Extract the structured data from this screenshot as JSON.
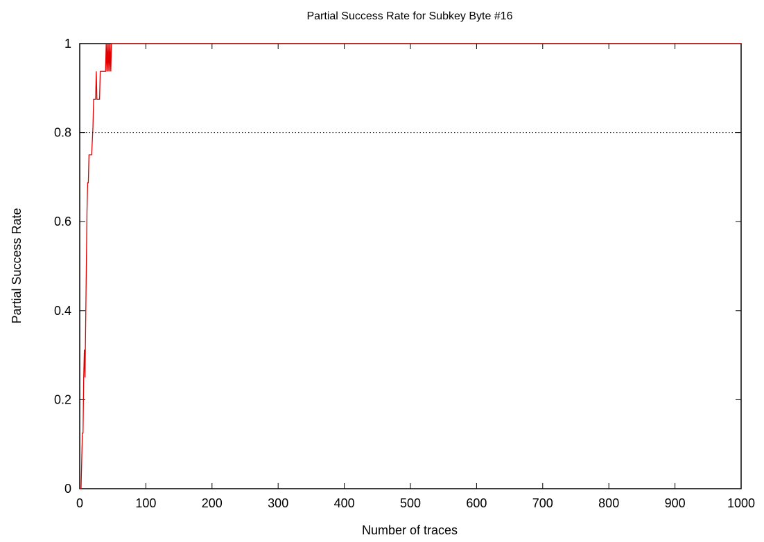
{
  "chart_data": {
    "type": "line",
    "title": "Partial Success Rate for Subkey Byte #16",
    "xlabel": "Number of traces",
    "ylabel": "Partial Success Rate",
    "xlim": [
      0,
      1000
    ],
    "ylim": [
      0,
      1
    ],
    "x_ticks": [
      "0",
      "100",
      "200",
      "300",
      "400",
      "500",
      "600",
      "700",
      "800",
      "900",
      "1000"
    ],
    "y_ticks": [
      "0",
      "0.2",
      "0.4",
      "0.6",
      "0.8",
      "1"
    ],
    "grid": false,
    "legend": "none",
    "series": [
      {
        "color": "#e00000",
        "x": [
          0,
          2,
          3,
          4,
          5,
          6,
          7,
          8,
          9,
          10,
          11,
          12,
          13,
          14,
          15,
          16,
          18,
          20,
          21,
          22,
          24,
          25,
          26,
          28,
          30,
          31,
          32,
          34,
          35,
          36,
          38,
          39,
          40,
          41,
          42,
          43,
          44,
          45,
          46,
          47,
          48,
          50,
          60,
          100,
          200,
          300,
          400,
          500,
          600,
          700,
          800,
          900,
          1000
        ],
        "y": [
          0,
          0,
          0.0625,
          0.125,
          0.125,
          0.25,
          0.3125,
          0.25,
          0.375,
          0.5,
          0.625,
          0.6875,
          0.6875,
          0.75,
          0.75,
          0.75,
          0.75,
          0.8125,
          0.875,
          0.875,
          0.875,
          0.9375,
          0.875,
          0.875,
          0.875,
          0.9375,
          0.9375,
          0.9375,
          0.9375,
          0.9375,
          0.9375,
          0.9375,
          1,
          0.9375,
          1,
          0.9375,
          1,
          0.9375,
          1,
          0.9375,
          1,
          1,
          1,
          1,
          1,
          1,
          1,
          1,
          1,
          1,
          1,
          1,
          1
        ]
      },
      {
        "color": "#000000",
        "style": "dotted",
        "x": [
          0,
          1000
        ],
        "y": [
          0.8,
          0.8
        ]
      }
    ]
  }
}
